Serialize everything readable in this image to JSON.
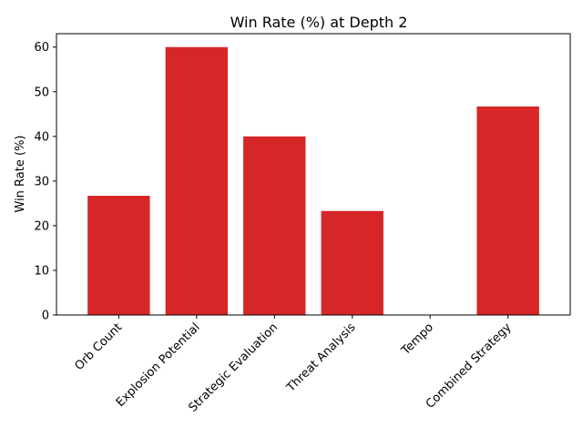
{
  "chart_data": {
    "type": "bar",
    "title": "Win Rate (%) at Depth 2",
    "xlabel": "",
    "ylabel": "Win Rate (%)",
    "categories": [
      "Orb Count",
      "Explosion Potential",
      "Strategic Evaluation",
      "Threat Analysis",
      "Tempo",
      "Combined Strategy"
    ],
    "values": [
      26.7,
      60.0,
      40.0,
      23.3,
      0.0,
      46.7
    ],
    "ylim": [
      0,
      63
    ],
    "yticks": [
      0,
      10,
      20,
      30,
      40,
      50,
      60
    ],
    "bar_color": "#d62728",
    "grid": false,
    "legend": "none"
  }
}
